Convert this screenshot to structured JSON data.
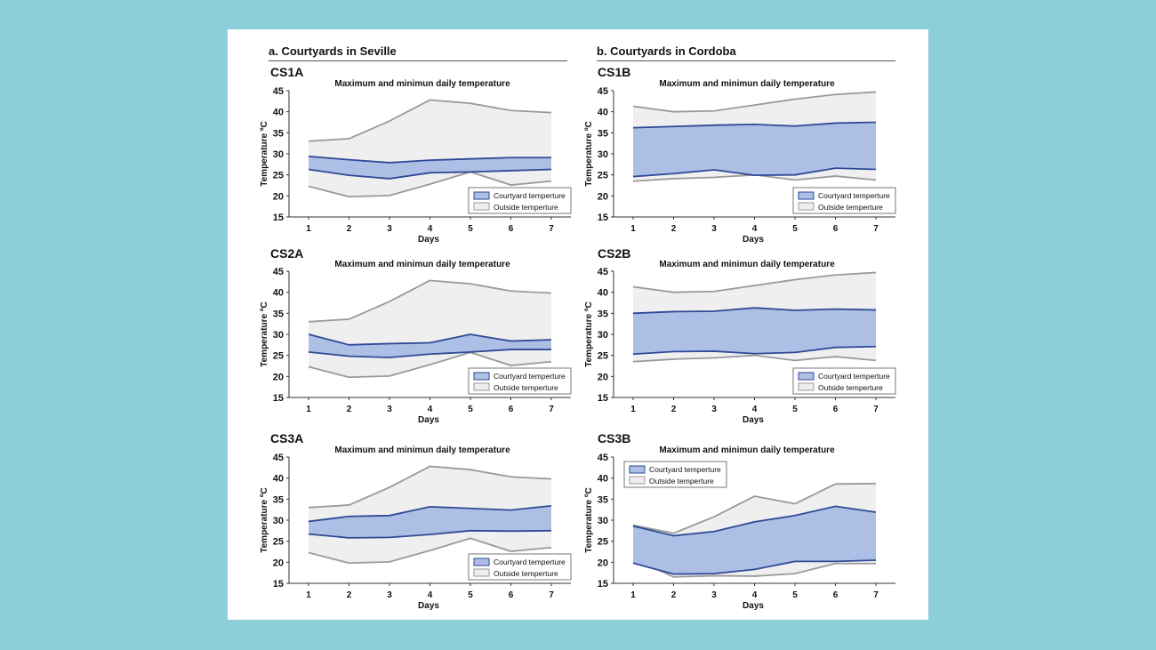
{
  "sections": [
    {
      "title": "a. Courtyards in Seville"
    },
    {
      "title": "b. Courtyards in Cordoba"
    }
  ],
  "colors": {
    "courtyard_fill": "#aebfe5",
    "courtyard_line": "#2e4a96",
    "outside_fill": "#efefef",
    "outside_line": "#9a9a9a"
  },
  "chart_data": [
    {
      "id": "CS1A",
      "type": "area",
      "title": "Maximum and minimun daily temperature",
      "xlabel": "Days",
      "ylabel": "Temperature ºC",
      "x": [
        1,
        2,
        3,
        4,
        5,
        6,
        7
      ],
      "yticks": [
        15,
        20,
        25,
        30,
        35,
        40,
        45
      ],
      "ylim": [
        15,
        45
      ],
      "legend": "bottom-right",
      "legend_labels": [
        "Courtyard temperture",
        "Outside temperture"
      ],
      "outside_max": [
        33,
        33.6,
        37.8,
        42.8,
        42,
        40.3,
        39.8
      ],
      "outside_min": [
        22.3,
        19.8,
        20.1,
        22.8,
        25.7,
        22.6,
        23.5
      ],
      "courtyard_max": [
        29.4,
        28.6,
        27.9,
        28.5,
        28.8,
        29.1,
        29.1
      ],
      "courtyard_min": [
        26.3,
        24.9,
        24.1,
        25.5,
        25.7,
        26,
        26.3
      ]
    },
    {
      "id": "CS1B",
      "type": "area",
      "title": "Maximum and minimun daily temperature",
      "xlabel": "Days",
      "ylabel": "Temperature ºC",
      "x": [
        1,
        2,
        3,
        4,
        5,
        6,
        7
      ],
      "yticks": [
        15,
        20,
        25,
        30,
        35,
        40,
        45
      ],
      "ylim": [
        15,
        45
      ],
      "legend": "bottom-right",
      "legend_labels": [
        "Courtyard temperture",
        "Outside temperture"
      ],
      "outside_max": [
        41.3,
        40,
        40.2,
        41.6,
        43,
        44.1,
        44.7
      ],
      "outside_min": [
        23.5,
        24.1,
        24.4,
        25,
        23.8,
        24.7,
        23.8
      ],
      "courtyard_max": [
        36.2,
        36.5,
        36.8,
        37,
        36.6,
        37.3,
        37.5
      ],
      "courtyard_min": [
        24.6,
        25.3,
        26.2,
        24.9,
        25,
        26.6,
        26.3
      ]
    },
    {
      "id": "CS2A",
      "type": "area",
      "title": "Maximum and minimun daily temperature",
      "xlabel": "Days",
      "ylabel": "Temperature ºC",
      "x": [
        1,
        2,
        3,
        4,
        5,
        6,
        7
      ],
      "yticks": [
        15,
        20,
        25,
        30,
        35,
        40,
        45
      ],
      "ylim": [
        15,
        45
      ],
      "legend": "bottom-right",
      "legend_labels": [
        "Courtyard temperture",
        "Outside temperture"
      ],
      "outside_max": [
        33,
        33.6,
        37.8,
        42.8,
        42,
        40.3,
        39.8
      ],
      "outside_min": [
        22.3,
        19.8,
        20.1,
        22.8,
        25.7,
        22.6,
        23.5
      ],
      "courtyard_max": [
        30,
        27.5,
        27.8,
        28,
        30,
        28.4,
        28.7
      ],
      "courtyard_min": [
        25.8,
        24.8,
        24.5,
        25.3,
        25.8,
        26.4,
        26.4
      ]
    },
    {
      "id": "CS2B",
      "type": "area",
      "title": "Maximum and minimun daily temperature",
      "xlabel": "Days",
      "ylabel": "Temperature ºC",
      "x": [
        1,
        2,
        3,
        4,
        5,
        6,
        7
      ],
      "yticks": [
        15,
        20,
        25,
        30,
        35,
        40,
        45
      ],
      "ylim": [
        15,
        45
      ],
      "legend": "bottom-right",
      "legend_labels": [
        "Courtyard temperture",
        "Outside temperture"
      ],
      "outside_max": [
        41.3,
        40,
        40.2,
        41.6,
        43,
        44.1,
        44.7
      ],
      "outside_min": [
        23.5,
        24.1,
        24.4,
        25,
        23.8,
        24.7,
        23.8
      ],
      "courtyard_max": [
        35,
        35.4,
        35.5,
        36.3,
        35.7,
        36,
        35.8
      ],
      "courtyard_min": [
        25.3,
        25.9,
        26,
        25.4,
        25.7,
        26.9,
        27.1
      ]
    },
    {
      "id": "CS3A",
      "type": "area",
      "title": "Maximum and minimun daily temperature",
      "xlabel": "Days",
      "ylabel": "Temperature ºC",
      "x": [
        1,
        2,
        3,
        4,
        5,
        6,
        7
      ],
      "yticks": [
        15,
        20,
        25,
        30,
        35,
        40,
        45
      ],
      "ylim": [
        15,
        45
      ],
      "legend": "bottom-right",
      "legend_labels": [
        "Courtyard temperture",
        "Outside temperture"
      ],
      "outside_max": [
        33,
        33.6,
        37.8,
        42.8,
        42,
        40.3,
        39.8
      ],
      "outside_min": [
        22.3,
        19.8,
        20.1,
        22.8,
        25.7,
        22.6,
        23.5
      ],
      "courtyard_max": [
        29.7,
        30.9,
        31.1,
        33.2,
        32.8,
        32.4,
        33.4
      ],
      "courtyard_min": [
        26.7,
        25.8,
        25.9,
        26.6,
        27.5,
        27.4,
        27.5
      ]
    },
    {
      "id": "CS3B",
      "type": "area",
      "title": "Maximum and minimun daily temperature",
      "xlabel": "Days",
      "ylabel": "Temperature ºC",
      "x": [
        1,
        2,
        3,
        4,
        5,
        6,
        7
      ],
      "yticks": [
        15,
        20,
        25,
        30,
        35,
        40,
        45
      ],
      "ylim": [
        15,
        45
      ],
      "legend": "top-left",
      "legend_labels": [
        "Courtyard temperture",
        "Outside temperture"
      ],
      "outside_max": [
        28.8,
        26.9,
        30.8,
        35.7,
        33.9,
        38.6,
        38.7
      ],
      "outside_min": [
        21,
        16.5,
        16.8,
        16.7,
        17.3,
        19.7,
        19.7
      ],
      "courtyard_max": [
        28.6,
        26.3,
        27.3,
        29.6,
        31.1,
        33.3,
        31.9
      ],
      "courtyard_min": [
        19.8,
        17.2,
        17.3,
        18.3,
        20.2,
        20.2,
        20.5
      ]
    }
  ]
}
